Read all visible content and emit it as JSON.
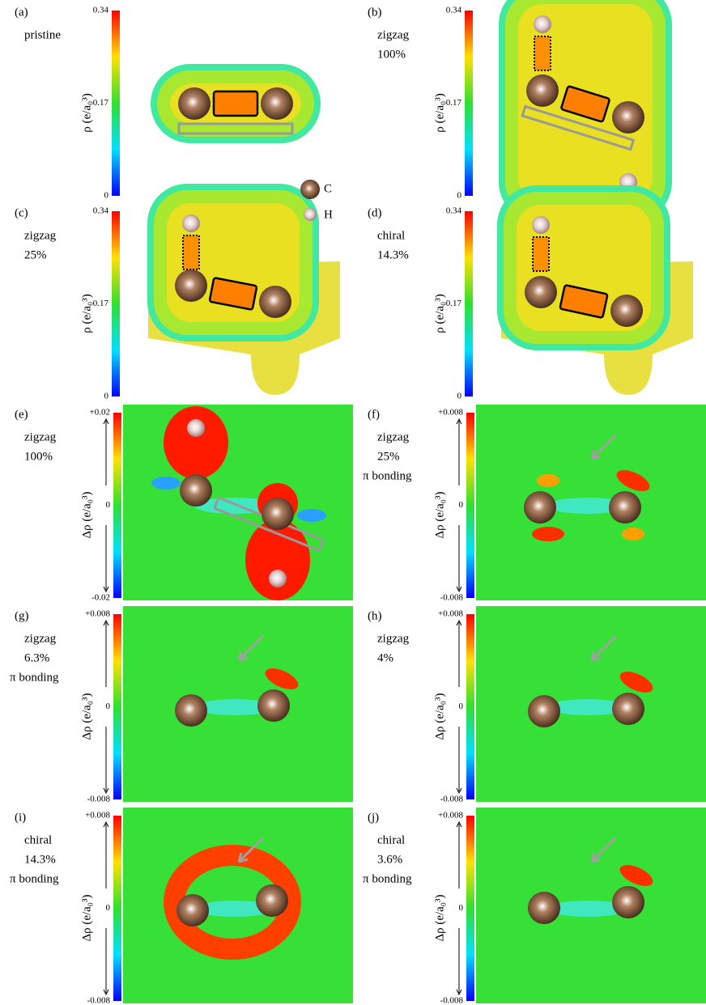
{
  "legend": [
    "C",
    "H"
  ],
  "panels": [
    {
      "label": "(a)",
      "lines": [
        "pristine"
      ],
      "kind": "rho",
      "ticks": [
        "0.34",
        "0.17",
        "0"
      ],
      "axis_label": "ρ (e/a₀³)"
    },
    {
      "label": "(b)",
      "lines": [
        "zigzag",
        "100%"
      ],
      "kind": "rho",
      "ticks": [
        "0.34",
        "0.17",
        "0"
      ],
      "axis_label": "ρ (e/a₀³)"
    },
    {
      "label": "(c)",
      "lines": [
        "zigzag",
        "25%"
      ],
      "kind": "rho",
      "ticks": [
        "0.34",
        "0.17",
        "0"
      ],
      "axis_label": "ρ (e/a₀³)"
    },
    {
      "label": "(d)",
      "lines": [
        "chiral",
        "14.3%"
      ],
      "kind": "rho",
      "ticks": [
        "0.34",
        "0.17",
        "0"
      ],
      "axis_label": "ρ (e/a₀³)"
    },
    {
      "label": "(e)",
      "lines": [
        "zigzag",
        "100%"
      ],
      "kind": "drho",
      "ticks": [
        "+0.02",
        "0",
        "-0.02"
      ],
      "axis_label": "Δρ (e/a₀³)"
    },
    {
      "label": "(f)",
      "lines": [
        "zigzag",
        "25%",
        "π bonding"
      ],
      "kind": "drho",
      "ticks": [
        "+0.008",
        "0",
        "-0.008"
      ],
      "axis_label": "Δρ (e/a₀³)"
    },
    {
      "label": "(g)",
      "lines": [
        "zigzag",
        "6.3%",
        "π bonding"
      ],
      "kind": "drho",
      "ticks": [
        "+0.008",
        "0",
        "-0.008"
      ],
      "axis_label": "Δρ (e/a₀³)"
    },
    {
      "label": "(h)",
      "lines": [
        "zigzag",
        "4%"
      ],
      "kind": "drho",
      "ticks": [
        "+0.008",
        "0",
        "-0.008"
      ],
      "axis_label": "Δρ (e/a₀³)"
    },
    {
      "label": "(i)",
      "lines": [
        "chiral",
        "14.3%",
        "π bonding"
      ],
      "kind": "drho",
      "ticks": [
        "+0.008",
        "0",
        "-0.008"
      ],
      "axis_label": "Δρ (e/a₀³)"
    },
    {
      "label": "(j)",
      "lines": [
        "chiral",
        "3.6%",
        "π bonding"
      ],
      "kind": "drho",
      "ticks": [
        "+0.008",
        "0",
        "-0.008"
      ],
      "axis_label": "Δρ (e/a₀³)"
    }
  ]
}
